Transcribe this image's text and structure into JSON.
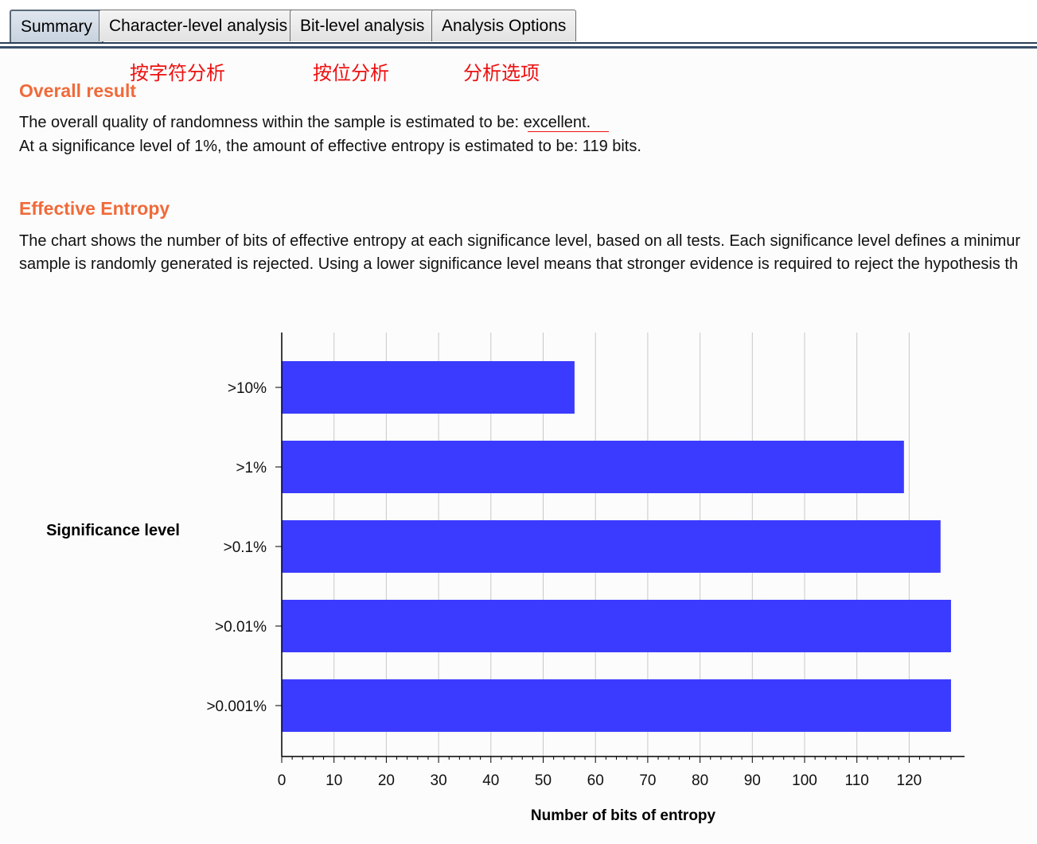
{
  "tabs": [
    {
      "label": "Summary",
      "active": true
    },
    {
      "label": "Character-level analysis",
      "active": false
    },
    {
      "label": "Bit-level analysis",
      "active": false
    },
    {
      "label": "Analysis Options",
      "active": false
    }
  ],
  "annotations": {
    "character_level": "按字符分析",
    "bit_level": "按位分析",
    "analysis_options": "分析选项"
  },
  "overall": {
    "heading": "Overall result",
    "line1_prefix": "The overall quality of randomness within the sample is estimated to be:",
    "line1_value": "excellent.",
    "line2": "At a significance level of 1%, the amount of effective entropy is estimated to be: 119 bits."
  },
  "entropy": {
    "heading": "Effective Entropy",
    "line1": "The chart shows the number of bits of effective entropy at each significance level, based on all tests. Each significance level defines a minimur",
    "line2": "sample is randomly generated is rejected. Using a lower significance level means that stronger evidence is required to reject the hypothesis th"
  },
  "colors": {
    "accent_heading": "#f06a3a",
    "bar": "#3b3bff",
    "annotation": "#ee1111"
  },
  "chart_data": {
    "type": "bar",
    "orientation": "horizontal",
    "categories": [
      ">10%",
      ">1%",
      ">0.1%",
      ">0.01%",
      ">0.001%"
    ],
    "values": [
      56,
      119,
      126,
      128,
      128
    ],
    "xlabel": "Number of bits of entropy",
    "ylabel": "Significance level",
    "xlim": [
      0,
      130
    ],
    "xticks": [
      0,
      10,
      20,
      30,
      40,
      50,
      60,
      70,
      80,
      90,
      100,
      110,
      120
    ],
    "grid": true
  }
}
